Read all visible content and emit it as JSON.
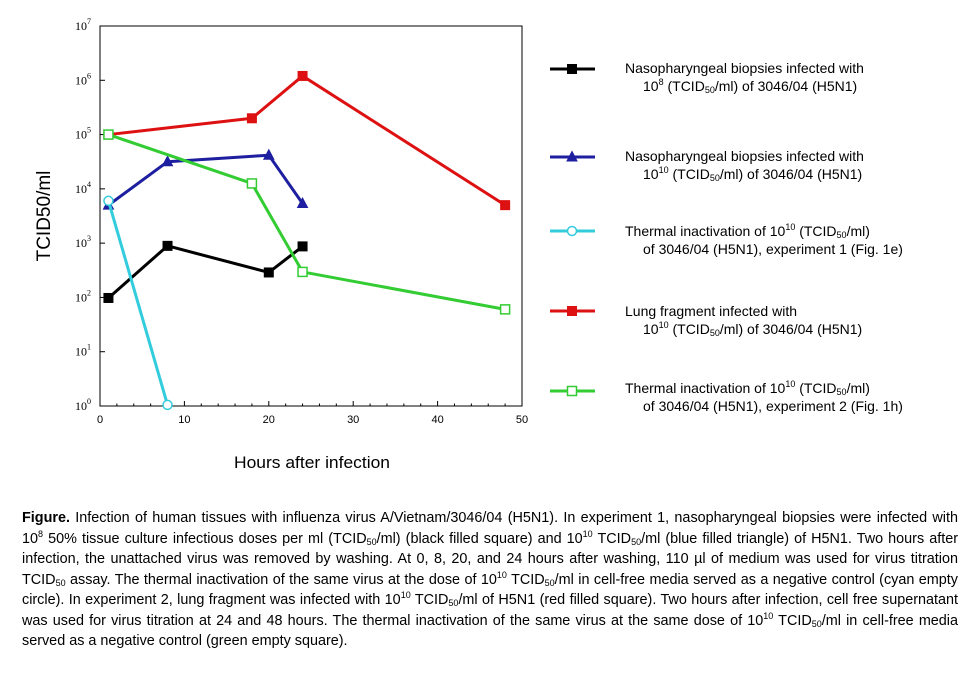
{
  "chart_data": {
    "type": "line",
    "xlabel": "Hours after infection",
    "ylabel": "TCID50/ml",
    "xlim": [
      0,
      50
    ],
    "ylim_log10": [
      0,
      7
    ],
    "x_ticks": [
      "0",
      "10",
      "20",
      "30",
      "40",
      "50"
    ],
    "y_ticks": [
      {
        "base": "10",
        "exp": "0"
      },
      {
        "base": "10",
        "exp": "1"
      },
      {
        "base": "10",
        "exp": "2"
      },
      {
        "base": "10",
        "exp": "3"
      },
      {
        "base": "10",
        "exp": "4"
      },
      {
        "base": "10",
        "exp": "5"
      },
      {
        "base": "10",
        "exp": "6"
      },
      {
        "base": "10",
        "exp": "7"
      }
    ],
    "series": [
      {
        "name": "black",
        "color": "#000000",
        "marker": "filled-square",
        "x": [
          1,
          8,
          20,
          24
        ],
        "y_log10": [
          1.99,
          2.95,
          2.46,
          2.94
        ],
        "legend": {
          "line1": "Nasopharyngeal biopsies infected with",
          "line2_parts": [
            "10",
            "8",
            " (TCID",
            "50",
            "/ml) of 3046/04 (H5N1)"
          ]
        }
      },
      {
        "name": "blue",
        "color": "#1e1ea0",
        "marker": "filled-triangle",
        "x": [
          1,
          8,
          20,
          24
        ],
        "y_log10": [
          3.7,
          4.5,
          4.62,
          3.73
        ],
        "legend": {
          "line1": "Nasopharyngeal biopsies infected with",
          "line2_parts": [
            "10",
            "10",
            " (TCID",
            "50",
            "/ml) of 3046/04 (H5N1)"
          ]
        }
      },
      {
        "name": "cyan",
        "color": "#33ccdd",
        "marker": "empty-circle",
        "x": [
          1,
          8
        ],
        "y_log10": [
          3.78,
          0.02
        ],
        "legend": {
          "line1_parts": [
            "Thermal inactivation of 10",
            "10",
            " (TCID",
            "50",
            "/ml)"
          ],
          "line2": "of 3046/04 (H5N1), experiment  1 (Fig. 1e)"
        }
      },
      {
        "name": "red",
        "color": "#dd1111",
        "marker": "filled-square",
        "x": [
          1,
          18,
          24,
          48
        ],
        "y_log10": [
          5.0,
          5.3,
          6.08,
          3.7
        ],
        "legend": {
          "line1": "Lung fragment infected with",
          "line2_parts": [
            "10",
            "10",
            " (TCID",
            "50",
            "/ml) of 3046/04 (H5N1)"
          ]
        }
      },
      {
        "name": "green",
        "color": "#33cc33",
        "marker": "empty-square",
        "x": [
          1,
          18,
          24,
          48
        ],
        "y_log10": [
          5.0,
          4.1,
          2.47,
          1.78
        ],
        "legend": {
          "line1_parts": [
            "Thermal inactivation of 10",
            "10",
            " (TCID",
            "50",
            "/ml)"
          ],
          "line2": "of 3046/04 (H5N1), experiment  2 (Fig. 1h)"
        }
      }
    ]
  },
  "caption": {
    "label": "Figure.",
    "t1": "  Infection of human tissues with influenza virus A/Vietnam/3046/04 (H5N1). In experiment 1, nasopharyngeal biopsies were infected with 10",
    "s1": "8",
    "t2": " 50% tissue culture infectious doses per ml (TCID",
    "b1": "50",
    "t3": "/ml) (black filled square) and 10",
    "s2": "10",
    "t4": " TCID",
    "b2": "50",
    "t5": "/ml (blue filled triangle) of H5N1.  Two hours after infection, the unattached virus was removed by washing. At 0, 8, 20, and 24 hours after washing, 110 µl of medium was used for virus titration TCID",
    "b3": "50",
    "t6": " assay. The thermal inactivation of the same virus at the dose of 10",
    "s3": "10",
    "t7": " TCID",
    "b4": "50",
    "t8": "/ml in cell-free media served as a negative control (cyan empty circle). In experiment 2, lung fragment was infected with 10",
    "s4": "10",
    "t9": " TCID",
    "b5": "50",
    "t10": "/ml of H5N1 (red filled square). Two hours after infection, cell free supernatant was used for virus titration at 24 and 48 hours. The thermal inactivation of the same virus at the same dose of 10",
    "s5": "10",
    "t11": " TCID",
    "b6": "50",
    "t12": "/ml in cell-free media served as a negative control (green empty square)."
  }
}
